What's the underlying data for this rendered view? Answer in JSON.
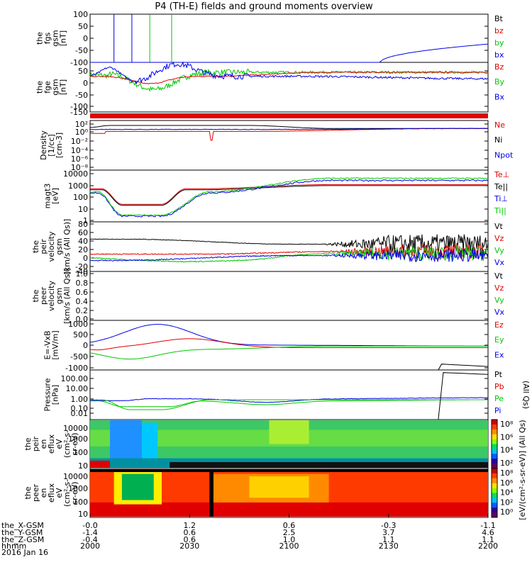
{
  "title": "P4 (TH-E) fields and ground moments overview",
  "colors": {
    "black": "#000000",
    "red": "#e00000",
    "green": "#00c800",
    "blue": "#0000e6"
  },
  "chart_data": [
    {
      "type": "line",
      "panel": "fgs",
      "ylabel": [
        "the",
        "fgs",
        "gsm",
        "[nT]"
      ],
      "yticks": [
        "100",
        "50",
        "0",
        "-50",
        "-100"
      ],
      "ylim": [
        -100,
        100
      ],
      "legend": [
        {
          "label": "Bt",
          "color": "black"
        },
        {
          "label": "bz",
          "color": "red"
        },
        {
          "label": "by",
          "color": "green"
        },
        {
          "label": "bx",
          "color": "blue"
        }
      ]
    },
    {
      "type": "line",
      "panel": "fge",
      "ylabel": [
        "the",
        "fge",
        "gsm",
        "[nT]"
      ],
      "yticks": [
        "50",
        "0",
        "-50",
        "-100",
        "-150"
      ],
      "ylim": [
        -180,
        75
      ],
      "legend": [
        {
          "label": "Bz",
          "color": "red"
        },
        {
          "label": "By",
          "color": "green"
        },
        {
          "label": "Bx",
          "color": "blue"
        }
      ]
    },
    {
      "type": "line",
      "panel": "density",
      "ylabel": [
        "Density",
        "[1/cc]",
        "[cm-3]"
      ],
      "yticks": [
        "10²",
        "10⁰",
        "10⁻²",
        "10⁻⁴",
        "10⁻⁶",
        "10⁻⁸"
      ],
      "log": true,
      "legend": [
        {
          "label": "Ne",
          "color": "red"
        },
        {
          "label": "Ni",
          "color": "black"
        },
        {
          "label": "Npot",
          "color": "blue"
        }
      ]
    },
    {
      "type": "line",
      "panel": "temperature",
      "ylabel": [
        "magt3",
        "[eV]"
      ],
      "yticks": [
        "10000",
        "1000",
        "100",
        "10",
        "1"
      ],
      "log": true,
      "legend": [
        {
          "label": "Te⊥",
          "color": "red"
        },
        {
          "label": "Te||",
          "color": "black"
        },
        {
          "label": "Ti⊥",
          "color": "blue"
        },
        {
          "label": "Ti||",
          "color": "green"
        }
      ]
    },
    {
      "type": "line",
      "panel": "peir_velocity",
      "ylabel": [
        "the",
        "peir",
        "velocity",
        "gsm",
        "[km/s (All Qs)]"
      ],
      "yticks": [
        "80",
        "60",
        "40",
        "20",
        "0",
        "-20",
        "-40"
      ],
      "ylim": [
        -40,
        80
      ],
      "legend": [
        {
          "label": "Vt",
          "color": "black"
        },
        {
          "label": "Vz",
          "color": "red"
        },
        {
          "label": "Vy",
          "color": "green"
        },
        {
          "label": "Vx",
          "color": "blue"
        }
      ]
    },
    {
      "type": "line",
      "panel": "peer_velocity",
      "ylabel": [
        "the",
        "peer",
        "velocity",
        "gsm",
        "[km/s (All Qs)]"
      ],
      "yticks": [
        "1.0",
        "0.8",
        "0.6",
        "0.4",
        "0.2",
        "0.0"
      ],
      "ylim": [
        0,
        1
      ],
      "legend": [
        {
          "label": "Vt",
          "color": "black"
        },
        {
          "label": "Vz",
          "color": "red"
        },
        {
          "label": "Vy",
          "color": "green"
        },
        {
          "label": "Vx",
          "color": "blue"
        }
      ]
    },
    {
      "type": "line",
      "panel": "efield",
      "ylabel": [
        "E=-VxB",
        "[mV/m]"
      ],
      "yticks": [
        "1000",
        "500",
        "0",
        "-500",
        "-1000"
      ],
      "ylim": [
        -1000,
        1000
      ],
      "legend": [
        {
          "label": "Ez",
          "color": "red"
        },
        {
          "label": "Ey",
          "color": "green"
        },
        {
          "label": "Ex",
          "color": "blue"
        }
      ]
    },
    {
      "type": "line",
      "panel": "pressure",
      "ylabel": [
        "Pressure",
        "[nPa]"
      ],
      "yticks": [
        "100.00",
        "10.00",
        "1.00",
        "0.10",
        "0.01"
      ],
      "log": true,
      "legend": [
        {
          "label": "Pt",
          "color": "black"
        },
        {
          "label": "Pb",
          "color": "red"
        },
        {
          "label": "Pe",
          "color": "green"
        },
        {
          "label": "Pi",
          "color": "blue"
        }
      ],
      "side_label": "(All Qs)"
    },
    {
      "type": "heatmap",
      "panel": "peir_spectrogram",
      "ylabel": [
        "the",
        "peir",
        "en",
        "eflux",
        "eV",
        "(cm²-s-",
        "sr-eV)"
      ],
      "yticks": [
        "10000",
        "1000",
        "100",
        "10"
      ],
      "colorbar_ticks": [
        "10⁸",
        "10⁶",
        "10⁴",
        "10²"
      ]
    },
    {
      "type": "heatmap",
      "panel": "peer_spectrogram",
      "ylabel": [
        "the",
        "peer",
        "en",
        "eflux",
        "eV",
        "(cm²-s-",
        "sr-eV)"
      ],
      "yticks": [
        "10000",
        "1000",
        "100",
        "10"
      ],
      "colorbar_ticks": [
        "10⁸",
        "10⁶",
        "10⁴",
        "10²",
        "10⁰"
      ]
    }
  ],
  "colorbar_label": "[eV/(cm²-s-sr-eV)] (All Qs)",
  "time_axis": {
    "row_labels": [
      "the_X-GSM",
      "the_Y-GSM",
      "the_Z-GSM",
      "hhmm",
      "2016 Jan 16"
    ],
    "columns": [
      [
        "-0.0",
        "-1.4",
        "-0.4",
        "2000"
      ],
      [
        "1.2",
        "0.6",
        "0.6",
        "2030"
      ],
      [
        "0.6",
        "2.5",
        "1.0",
        "2100"
      ],
      [
        "-0.3",
        "3.7",
        "1.1",
        "2130"
      ],
      [
        "-1.1",
        "4.6",
        "1.1",
        "2200"
      ]
    ]
  }
}
